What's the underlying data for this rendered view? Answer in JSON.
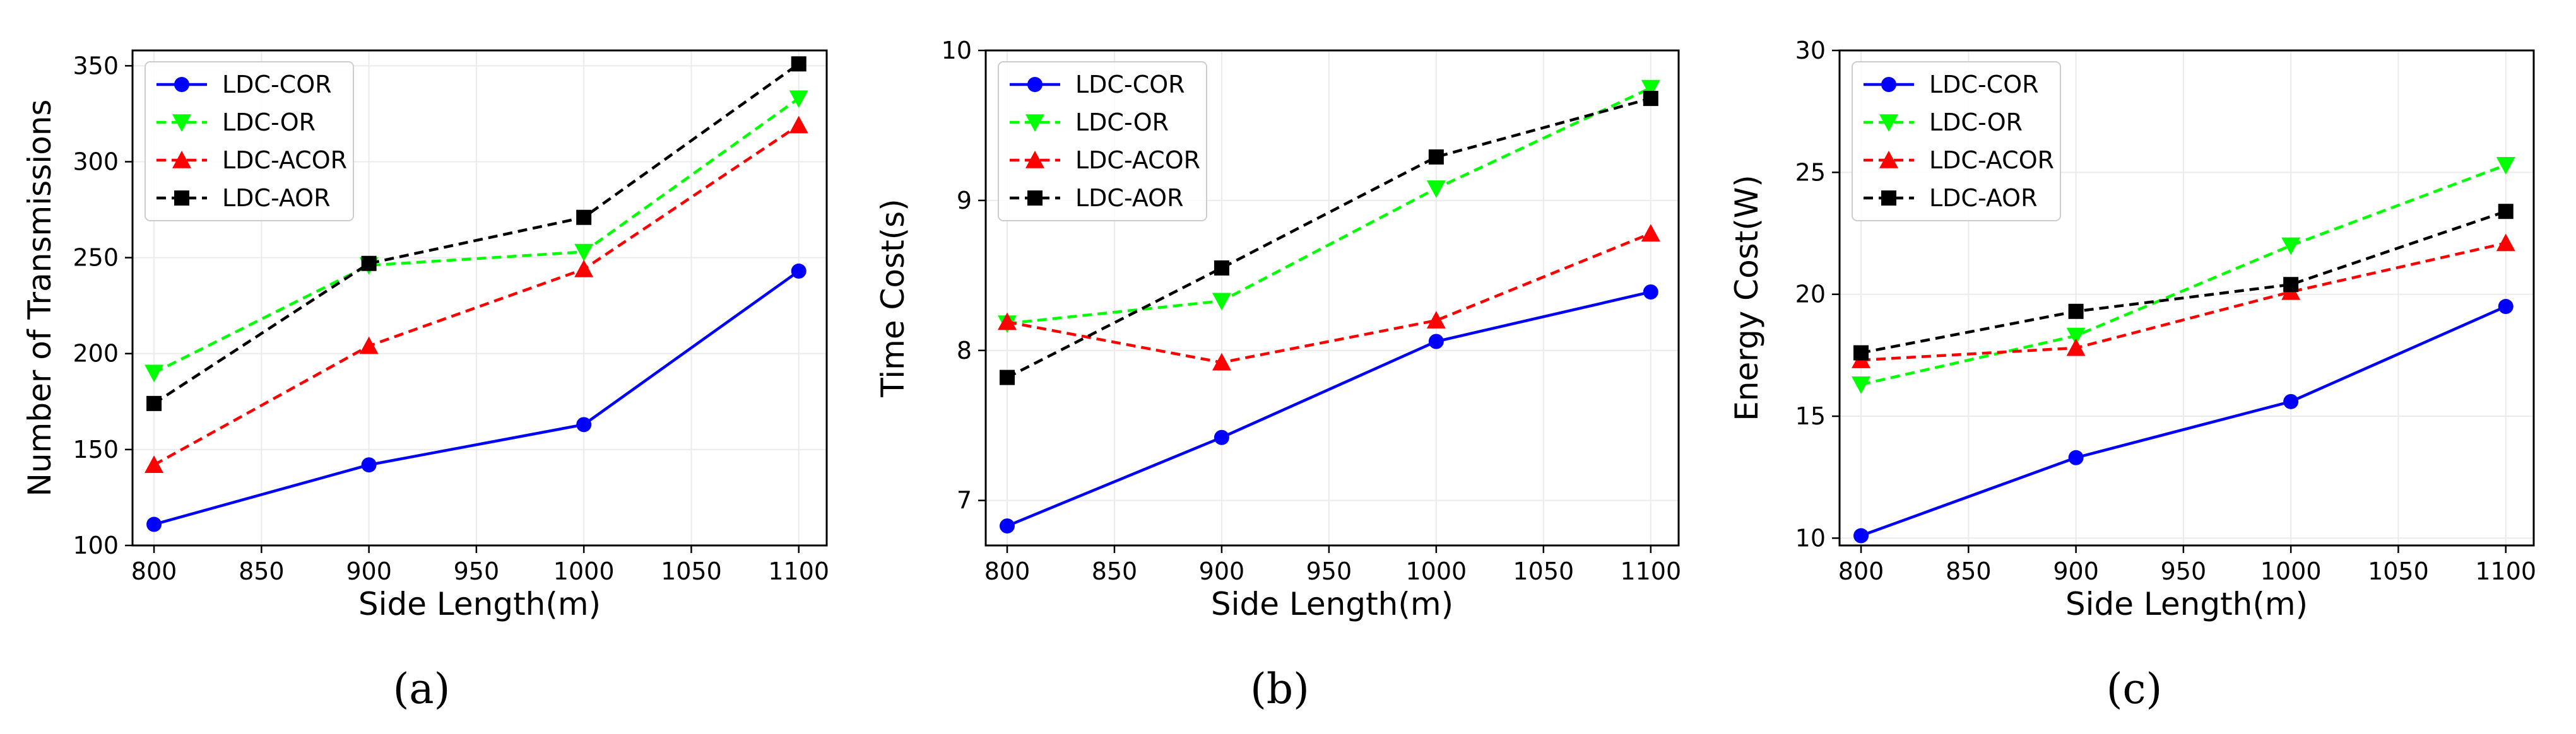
{
  "figure": {
    "captions": [
      "(a)",
      "(b)",
      "(c)"
    ]
  },
  "chart_data": [
    {
      "type": "line",
      "panel": "(a)",
      "title": "",
      "xlabel": "Side Length(m)",
      "ylabel": "Number of Transmissions",
      "x": [
        800,
        900,
        1000,
        1100
      ],
      "xticks": [
        800,
        850,
        900,
        950,
        1000,
        1050,
        1100
      ],
      "xticklabels": [
        "800",
        "850",
        "900",
        "950",
        "1000",
        "1050",
        "1100"
      ],
      "xlim": [
        790,
        1113
      ],
      "yticks": [
        100,
        150,
        200,
        250,
        300,
        350
      ],
      "yticklabels": [
        "100",
        "150",
        "200",
        "250",
        "300",
        "350"
      ],
      "ylim": [
        100,
        358
      ],
      "grid": true,
      "legend": "top-left",
      "series": [
        {
          "name": "LDC-COR",
          "values": [
            111,
            142,
            163,
            243
          ],
          "color": "#0000ff",
          "dash": "solid",
          "marker": "circle"
        },
        {
          "name": "LDC-OR",
          "values": [
            190,
            246,
            253,
            333
          ],
          "color": "#00ff00",
          "dash": "dashed",
          "marker": "triangle-down"
        },
        {
          "name": "LDC-ACOR",
          "values": [
            142,
            204,
            244,
            319
          ],
          "color": "#ff0000",
          "dash": "dashed",
          "marker": "triangle-up"
        },
        {
          "name": "LDC-AOR",
          "values": [
            174,
            247,
            271,
            351
          ],
          "color": "#000000",
          "dash": "dashed",
          "marker": "square"
        }
      ]
    },
    {
      "type": "line",
      "panel": "(b)",
      "title": "",
      "xlabel": "Side Length(m)",
      "ylabel": "Time Cost(s)",
      "x": [
        800,
        900,
        1000,
        1100
      ],
      "xticks": [
        800,
        850,
        900,
        950,
        1000,
        1050,
        1100
      ],
      "xticklabels": [
        "800",
        "850",
        "900",
        "950",
        "1000",
        "1050",
        "1100"
      ],
      "xlim": [
        790,
        1113
      ],
      "yticks": [
        7,
        8,
        9,
        10
      ],
      "yticklabels": [
        "7",
        "8",
        "9",
        "10"
      ],
      "ylim": [
        6.7,
        10
      ],
      "grid": true,
      "legend": "top-left",
      "series": [
        {
          "name": "LDC-COR",
          "values": [
            6.83,
            7.42,
            8.06,
            8.39
          ],
          "color": "#0000ff",
          "dash": "solid",
          "marker": "circle"
        },
        {
          "name": "LDC-OR",
          "values": [
            8.18,
            8.33,
            9.08,
            9.75
          ],
          "color": "#00ff00",
          "dash": "dashed",
          "marker": "triangle-down"
        },
        {
          "name": "LDC-ACOR",
          "values": [
            8.19,
            7.92,
            8.2,
            8.78
          ],
          "color": "#ff0000",
          "dash": "dashed",
          "marker": "triangle-up"
        },
        {
          "name": "LDC-AOR",
          "values": [
            7.82,
            8.55,
            9.29,
            9.68
          ],
          "color": "#000000",
          "dash": "dashed",
          "marker": "square"
        }
      ]
    },
    {
      "type": "line",
      "panel": "(c)",
      "title": "",
      "xlabel": "Side Length(m)",
      "ylabel": "Energy Cost(W)",
      "x": [
        800,
        900,
        1000,
        1100
      ],
      "xticks": [
        800,
        850,
        900,
        950,
        1000,
        1050,
        1100
      ],
      "xticklabels": [
        "800",
        "850",
        "900",
        "950",
        "1000",
        "1050",
        "1100"
      ],
      "xlim": [
        790,
        1113
      ],
      "yticks": [
        10,
        15,
        20,
        25,
        30
      ],
      "yticklabels": [
        "10",
        "15",
        "20",
        "25",
        "30"
      ],
      "ylim": [
        9.7,
        30
      ],
      "grid": true,
      "legend": "top-left",
      "series": [
        {
          "name": "LDC-COR",
          "values": [
            10.1,
            13.3,
            15.6,
            19.5
          ],
          "color": "#0000ff",
          "dash": "solid",
          "marker": "circle"
        },
        {
          "name": "LDC-OR",
          "values": [
            16.3,
            18.3,
            22.0,
            25.3
          ],
          "color": "#00ff00",
          "dash": "dashed",
          "marker": "triangle-down"
        },
        {
          "name": "LDC-ACOR",
          "values": [
            17.3,
            17.8,
            20.1,
            22.1
          ],
          "color": "#ff0000",
          "dash": "dashed",
          "marker": "triangle-up"
        },
        {
          "name": "LDC-AOR",
          "values": [
            17.6,
            19.3,
            20.4,
            23.4
          ],
          "color": "#000000",
          "dash": "dashed",
          "marker": "square"
        }
      ]
    }
  ]
}
